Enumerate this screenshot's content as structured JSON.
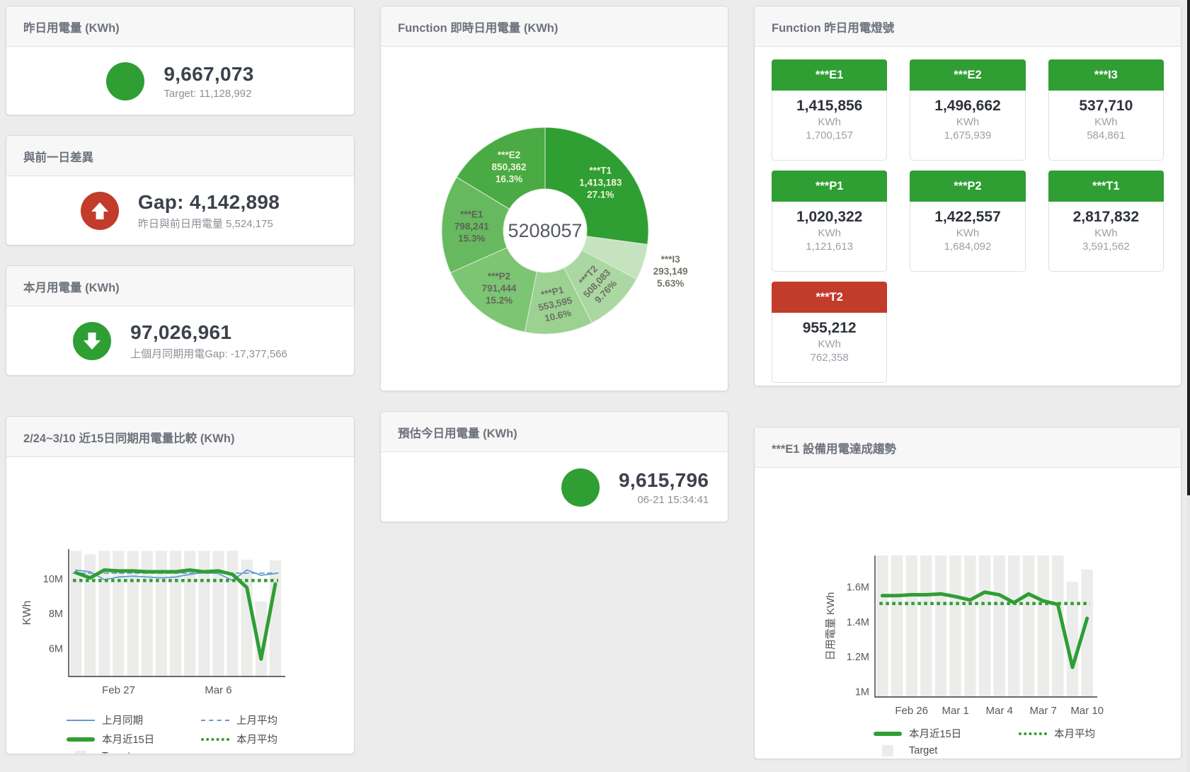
{
  "theme": {
    "green": "#2f9e33",
    "red": "#c23b2b",
    "blue": "#649bd1",
    "bar_gray": "#ececeb",
    "axis": "#3a3a3a",
    "tick_text": "#55595e"
  },
  "cards": {
    "yesterday": {
      "title": "昨日用電量 (KWh)",
      "value": "9,667,073",
      "subtitle": "Target: 11,128,992"
    },
    "gap": {
      "title": "與前一日差異",
      "value": "Gap: 4,142,898",
      "subtitle": "昨日與前日用電量 5,524,175"
    },
    "month": {
      "title": "本月用電量 (KWh)",
      "value": "97,026,961",
      "subtitle": "上個月同期用電Gap: -17,377,566"
    },
    "estimate": {
      "title": "預估今日用電量 (KWh)",
      "value": "9,615,796",
      "subtitle": "06-21 15:34:41"
    },
    "donut": {
      "title": "Function 即時日用電量 (KWh)"
    },
    "compare": {
      "title": "2/24~3/10 近15日同期用電量比較 (KWh)"
    },
    "lights": {
      "title": "Function 昨日用電燈號",
      "unit": "KWh",
      "tiles": [
        {
          "label": "***E1",
          "value": "1,415,856",
          "sub": "1,700,157",
          "status": "green"
        },
        {
          "label": "***E2",
          "value": "1,496,662",
          "sub": "1,675,939",
          "status": "green"
        },
        {
          "label": "***I3",
          "value": "537,710",
          "sub": "584,861",
          "status": "green"
        },
        {
          "label": "***P1",
          "value": "1,020,322",
          "sub": "1,121,613",
          "status": "green"
        },
        {
          "label": "***P2",
          "value": "1,422,557",
          "sub": "1,684,092",
          "status": "green"
        },
        {
          "label": "***T1",
          "value": "2,817,832",
          "sub": "3,591,562",
          "status": "green"
        },
        {
          "label": "***T2",
          "value": "955,212",
          "sub": "762,358",
          "status": "red"
        }
      ]
    },
    "e1trend": {
      "title": "***E1 設備用電達成趨勢"
    }
  },
  "chart_data": [
    {
      "id": "donut",
      "type": "pie",
      "title": "Function 即時日用電量 (KWh)",
      "center_total": "5208057",
      "slices": [
        {
          "label": "***T1",
          "value": 1413183,
          "value_text": "1,413,183",
          "pct_text": "27.1%",
          "color": "#2f9e33",
          "text_color": "#f0f6d9",
          "rotate": 0,
          "outside": false
        },
        {
          "label": "***I3",
          "value": 293149,
          "value_text": "293,149",
          "pct_text": "5.63%",
          "color": "#c6e3c0",
          "text_color": "#71736a",
          "rotate": 0,
          "outside": true
        },
        {
          "label": "***T2",
          "value": 508083,
          "value_text": "508,083",
          "pct_text": "9.76%",
          "color": "#abd8a2",
          "text_color": "#6d6f64",
          "rotate": -47,
          "outside": false
        },
        {
          "label": "***P1",
          "value": 553595,
          "value_text": "553,595",
          "pct_text": "10.6%",
          "color": "#9bd191",
          "text_color": "#6d6f64",
          "rotate": -13,
          "outside": false
        },
        {
          "label": "***P2",
          "value": 791444,
          "value_text": "791,444",
          "pct_text": "15.2%",
          "color": "#7cc573",
          "text_color": "#64675c",
          "rotate": 0,
          "outside": false
        },
        {
          "label": "***E1",
          "value": 798241,
          "value_text": "798,241",
          "pct_text": "15.3%",
          "color": "#66b95e",
          "text_color": "#5f6257",
          "rotate": 0,
          "outside": false
        },
        {
          "label": "***E2",
          "value": 850362,
          "value_text": "850,362",
          "pct_text": "16.3%",
          "color": "#4aab44",
          "text_color": "#eef5d8",
          "rotate": 0,
          "outside": false
        }
      ]
    },
    {
      "id": "compare15",
      "type": "line",
      "title": "2/24~3/10 近15日同期用電量比較 (KWh)",
      "ylabel": "KWh",
      "unit": "M KWh",
      "ylim": [
        4.4,
        11.7
      ],
      "yticks": [
        {
          "v": 6,
          "label": "6M"
        },
        {
          "v": 8,
          "label": "8M"
        },
        {
          "v": 10,
          "label": "10M"
        }
      ],
      "xticks": [
        {
          "index": 3,
          "label": "Feb 27"
        },
        {
          "index": 10,
          "label": "Mar 6"
        }
      ],
      "days": 15,
      "target_bars": [
        11.6,
        11.4,
        11.6,
        11.6,
        11.6,
        11.6,
        11.6,
        11.6,
        11.6,
        11.6,
        11.6,
        11.6,
        11.1,
        8.7,
        11.05
      ],
      "series": [
        {
          "name": "上月同期",
          "style": "solid",
          "width": 1.8,
          "colorKey": "blue",
          "values": [
            10.5,
            10.4,
            9.95,
            10.1,
            10.15,
            10.1,
            10.05,
            10.1,
            10.25,
            10.35,
            10.3,
            9.9,
            10.5,
            10.2,
            10.3
          ]
        },
        {
          "name": "上月平均",
          "style": "dashed",
          "width": 1.8,
          "colorKey": "blue",
          "value": 10.32
        },
        {
          "name": "本月近15日",
          "style": "solid",
          "width": 5,
          "colorKey": "green",
          "values": [
            10.35,
            10.05,
            10.5,
            10.45,
            10.45,
            10.4,
            10.4,
            10.4,
            10.5,
            10.4,
            10.45,
            10.25,
            9.5,
            5.4,
            9.7
          ]
        },
        {
          "name": "本月平均",
          "style": "dotted",
          "width": 4.5,
          "colorKey": "green",
          "value": 9.9
        }
      ],
      "legend": [
        {
          "label": "上月同期",
          "swatch": "line",
          "colorKey": "blue"
        },
        {
          "label": "上月平均",
          "swatch": "dashed",
          "colorKey": "blue"
        },
        {
          "label": "本月近15日",
          "swatch": "thick",
          "colorKey": "green"
        },
        {
          "label": "本月平均",
          "swatch": "dotted",
          "colorKey": "green"
        },
        {
          "label": "Target",
          "swatch": "box",
          "colorKey": "bar_gray"
        }
      ]
    },
    {
      "id": "e1trend",
      "type": "line",
      "title": "***E1 設備用電達成趨勢",
      "ylabel": "日用電量 KWh",
      "unit": "M KWh",
      "ylim": [
        0.97,
        1.78
      ],
      "yticks": [
        {
          "v": 1,
          "label": "1M"
        },
        {
          "v": 1.2,
          "label": "1.2M"
        },
        {
          "v": 1.4,
          "label": "1.4M"
        },
        {
          "v": 1.6,
          "label": "1.6M"
        }
      ],
      "xticks": [
        {
          "index": 2,
          "label": "Feb 26"
        },
        {
          "index": 5,
          "label": "Mar 1"
        },
        {
          "index": 8,
          "label": "Mar 4"
        },
        {
          "index": 11,
          "label": "Mar 7"
        },
        {
          "index": 14,
          "label": "Mar 10"
        }
      ],
      "days": 15,
      "target_bars": [
        1.78,
        1.78,
        1.78,
        1.78,
        1.78,
        1.78,
        1.78,
        1.78,
        1.78,
        1.78,
        1.78,
        1.78,
        1.78,
        1.63,
        1.7
      ],
      "series": [
        {
          "name": "本月近15日",
          "style": "solid",
          "width": 5,
          "colorKey": "green",
          "values": [
            1.55,
            1.55,
            1.555,
            1.555,
            1.56,
            1.545,
            1.525,
            1.57,
            1.555,
            1.51,
            1.56,
            1.52,
            1.5,
            1.14,
            1.42
          ]
        },
        {
          "name": "本月平均",
          "style": "dotted",
          "width": 4.5,
          "colorKey": "green",
          "value": 1.505
        }
      ],
      "legend": [
        {
          "label": "本月近15日",
          "swatch": "thick",
          "colorKey": "green"
        },
        {
          "label": "本月平均",
          "swatch": "dotted",
          "colorKey": "green"
        },
        {
          "label": "Target",
          "swatch": "box",
          "colorKey": "bar_gray"
        }
      ]
    }
  ]
}
